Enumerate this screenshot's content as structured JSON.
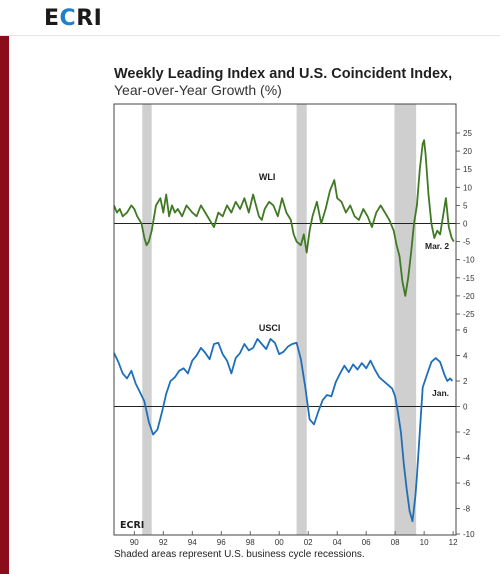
{
  "brand": {
    "logo_prefix": "E",
    "logo_c": "C",
    "logo_suffix": "RI",
    "accent_color": "#1f7fc9",
    "sidebar_color": "#8b0c1b"
  },
  "chart_data": {
    "type": "line",
    "title": "Weekly Leading Index and U.S. Coincident Index,",
    "subtitle": "Year-over-Year Growth (%)",
    "footnote": "Shaded areas represent U.S. business cycle recessions.",
    "watermark": "ECRI",
    "x_ticks": [
      "90",
      "92",
      "94",
      "96",
      "98",
      "00",
      "02",
      "04",
      "06",
      "08",
      "10",
      "12"
    ],
    "xlim": [
      1988.6,
      2012.2
    ],
    "recessions": [
      [
        1990.55,
        1991.2
      ],
      [
        2001.2,
        2001.9
      ],
      [
        2007.95,
        2009.45
      ]
    ],
    "panels": [
      {
        "name": "WLI",
        "color": "#3f7a23",
        "ylim": [
          -25,
          25
        ],
        "y_ticks": [
          "25",
          "20",
          "15",
          "10",
          "5",
          "0",
          "-5",
          "-10",
          "-15",
          "-20",
          "-25"
        ],
        "end_label": "Mar. 2",
        "x": [
          1988.6,
          1988.8,
          1989.0,
          1989.2,
          1989.5,
          1989.8,
          1990.0,
          1990.2,
          1990.5,
          1990.7,
          1990.85,
          1991.0,
          1991.2,
          1991.5,
          1991.8,
          1992.0,
          1992.2,
          1992.4,
          1992.6,
          1992.8,
          1993.0,
          1993.3,
          1993.6,
          1994.0,
          1994.3,
          1994.6,
          1994.9,
          1995.2,
          1995.5,
          1995.8,
          1996.1,
          1996.4,
          1996.7,
          1997.0,
          1997.3,
          1997.6,
          1997.9,
          1998.2,
          1998.4,
          1998.6,
          1998.8,
          1999.0,
          1999.3,
          1999.6,
          1999.9,
          2000.2,
          2000.5,
          2000.8,
          2001.0,
          2001.2,
          2001.5,
          2001.7,
          2001.9,
          2002.1,
          2002.3,
          2002.6,
          2002.9,
          2003.2,
          2003.5,
          2003.8,
          2004.0,
          2004.3,
          2004.6,
          2004.9,
          2005.2,
          2005.5,
          2005.8,
          2006.1,
          2006.4,
          2006.7,
          2007.0,
          2007.3,
          2007.6,
          2007.9,
          2008.1,
          2008.3,
          2008.5,
          2008.7,
          2008.9,
          2009.1,
          2009.3,
          2009.5,
          2009.7,
          2009.9,
          2010.0,
          2010.1,
          2010.3,
          2010.5,
          2010.7,
          2010.9,
          2011.1,
          2011.3,
          2011.5,
          2011.7,
          2011.9,
          2012.05
        ],
        "y": [
          5,
          3,
          4,
          2,
          3,
          5,
          4,
          2,
          0,
          -4,
          -6,
          -5,
          -2,
          5,
          7,
          3,
          8,
          2,
          5,
          3,
          4,
          2,
          5,
          3,
          2,
          5,
          3,
          1,
          -1,
          3,
          2,
          5,
          3,
          6,
          4,
          7,
          3,
          8,
          5,
          2,
          1,
          4,
          6,
          5,
          2,
          7,
          3,
          1,
          -3,
          -5,
          -6,
          -3,
          -8,
          -2,
          2,
          6,
          0,
          4,
          9,
          12,
          7,
          6,
          3,
          5,
          2,
          1,
          4,
          2,
          -1,
          3,
          5,
          3,
          1,
          -2,
          -6,
          -9,
          -16,
          -20,
          -15,
          -8,
          0,
          5,
          15,
          22,
          23,
          19,
          8,
          0,
          -4,
          -2,
          -3,
          2,
          7,
          -1,
          -4,
          -5
        ]
      },
      {
        "name": "USCI",
        "color": "#1f6fb8",
        "ylim": [
          -10,
          6
        ],
        "y_ticks": [
          "6",
          "4",
          "2",
          "0",
          "-2",
          "-4",
          "-6",
          "-8",
          "-10"
        ],
        "end_label": "Jan.",
        "x": [
          1988.6,
          1988.9,
          1989.2,
          1989.5,
          1989.8,
          1990.1,
          1990.4,
          1990.7,
          1991.0,
          1991.3,
          1991.6,
          1991.9,
          1992.2,
          1992.5,
          1992.8,
          1993.1,
          1993.4,
          1993.7,
          1994.0,
          1994.3,
          1994.6,
          1994.9,
          1995.2,
          1995.5,
          1995.8,
          1996.1,
          1996.4,
          1996.7,
          1997.0,
          1997.3,
          1997.6,
          1997.9,
          1998.2,
          1998.5,
          1998.8,
          1999.1,
          1999.4,
          1999.7,
          2000.0,
          2000.3,
          2000.6,
          2000.9,
          2001.2,
          2001.5,
          2001.8,
          2002.1,
          2002.4,
          2002.7,
          2003.0,
          2003.3,
          2003.6,
          2003.9,
          2004.2,
          2004.5,
          2004.8,
          2005.1,
          2005.4,
          2005.7,
          2006.0,
          2006.3,
          2006.6,
          2006.9,
          2007.2,
          2007.5,
          2007.8,
          2008.0,
          2008.2,
          2008.4,
          2008.6,
          2008.8,
          2009.0,
          2009.2,
          2009.4,
          2009.5,
          2009.7,
          2009.9,
          2010.2,
          2010.5,
          2010.8,
          2011.1,
          2011.4,
          2011.6,
          2011.8,
          2011.95
        ],
        "y": [
          4.2,
          3.5,
          2.6,
          2.2,
          2.8,
          1.8,
          1.1,
          0.4,
          -1.2,
          -2.2,
          -1.8,
          -0.5,
          1.0,
          2.0,
          2.3,
          2.8,
          3.0,
          2.6,
          3.6,
          4.0,
          4.6,
          4.2,
          3.7,
          4.9,
          5.0,
          4.1,
          3.6,
          2.6,
          3.8,
          4.2,
          4.9,
          4.4,
          4.6,
          5.3,
          4.9,
          4.5,
          5.3,
          5.0,
          4.1,
          4.3,
          4.7,
          4.9,
          5.0,
          3.7,
          1.5,
          -1.0,
          -1.4,
          -0.4,
          0.5,
          0.9,
          0.8,
          1.9,
          2.6,
          3.2,
          2.7,
          3.3,
          2.9,
          3.4,
          3.0,
          3.6,
          2.9,
          2.3,
          2.0,
          1.7,
          1.4,
          0.8,
          -0.5,
          -2.0,
          -4.5,
          -6.5,
          -8.2,
          -9.0,
          -7.0,
          -5.5,
          -2.0,
          1.5,
          2.5,
          3.5,
          3.8,
          3.5,
          2.5,
          2.0,
          2.2,
          2.0
        ]
      }
    ]
  }
}
